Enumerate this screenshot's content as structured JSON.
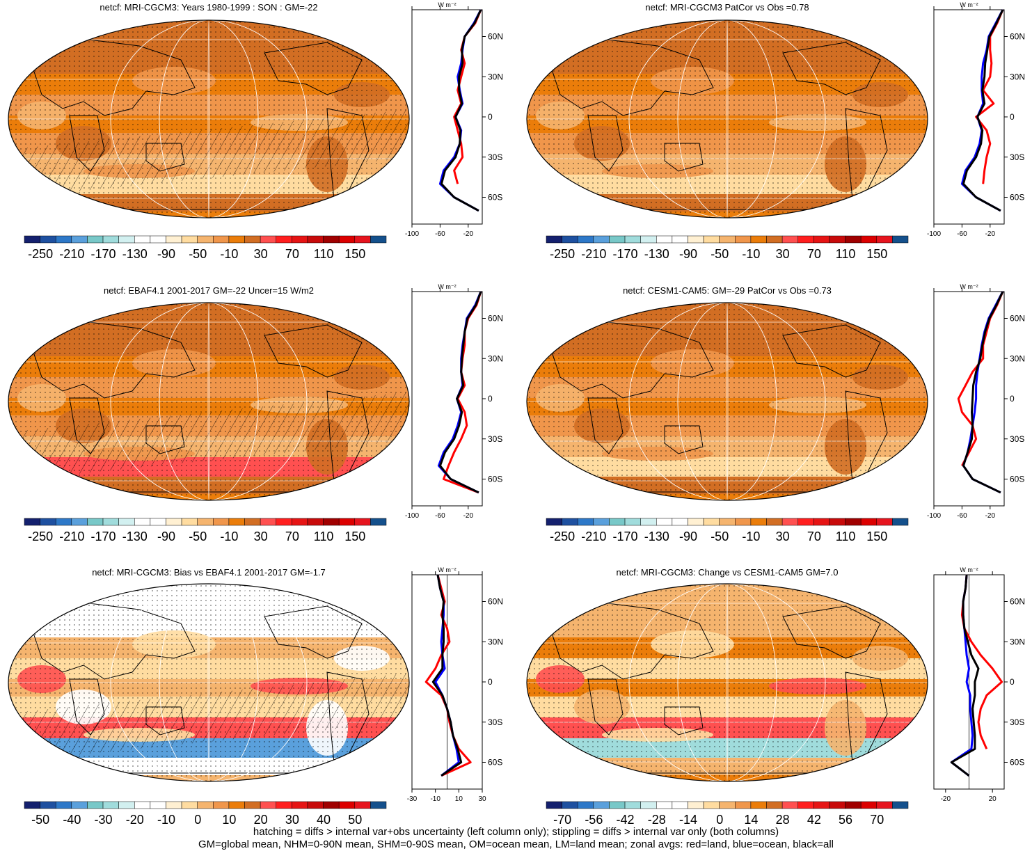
{
  "panels": [
    {
      "id": "p1",
      "title": "netcf: MRI-CGCM3: Years 1980-1999 : SON : GM=-22",
      "colorbar_labels": [
        "-250",
        "-210",
        "-170",
        "-130",
        "-90",
        "-50",
        "-10",
        "30",
        "70",
        "110",
        "150"
      ],
      "zonal_xticks": [
        "-100",
        "-60",
        "-20"
      ],
      "zonal_units": "W m⁻²",
      "lat_labels": [
        "60N",
        "30N",
        "0",
        "30S",
        "60S"
      ],
      "hatched": true,
      "stippled": true
    },
    {
      "id": "p2",
      "title": "netcf: MRI-CGCM3 PatCor vs Obs =0.78",
      "colorbar_labels": [
        "-250",
        "-210",
        "-170",
        "-130",
        "-90",
        "-50",
        "-10",
        "30",
        "70",
        "110",
        "150"
      ],
      "zonal_xticks": [
        "-100",
        "-60",
        "-20"
      ],
      "zonal_units": "W m⁻²",
      "lat_labels": [
        "60N",
        "30N",
        "0",
        "30S",
        "60S"
      ],
      "hatched": false,
      "stippled": true
    },
    {
      "id": "p3",
      "title": "netcf: EBAF4.1 2001-2017 GM=-22 Uncer=15 W/m2",
      "colorbar_labels": [
        "-250",
        "-210",
        "-170",
        "-130",
        "-90",
        "-50",
        "-10",
        "30",
        "70",
        "110",
        "150"
      ],
      "zonal_xticks": [
        "-100",
        "-60",
        "-20"
      ],
      "zonal_units": "W m⁻²",
      "lat_labels": [
        "60N",
        "30N",
        "0",
        "30S",
        "60S"
      ],
      "hatched": true,
      "stippled": true
    },
    {
      "id": "p4",
      "title": "netcf: CESM1-CAM5: GM=-29 PatCor vs Obs =0.73",
      "colorbar_labels": [
        "-250",
        "-210",
        "-170",
        "-130",
        "-90",
        "-50",
        "-10",
        "30",
        "70",
        "110",
        "150"
      ],
      "zonal_xticks": [
        "-100",
        "-60",
        "-20"
      ],
      "zonal_units": "W m⁻²",
      "lat_labels": [
        "60N",
        "30N",
        "0",
        "30S",
        "60S"
      ],
      "hatched": false,
      "stippled": true
    },
    {
      "id": "p5",
      "title": "netcf: MRI-CGCM3: Bias vs EBAF4.1 2001-2017  GM=-1.7",
      "colorbar_labels": [
        "-50",
        "-40",
        "-30",
        "-20",
        "-10",
        "0",
        "10",
        "20",
        "30",
        "40",
        "50"
      ],
      "zonal_xticks": [
        "-30",
        "-10",
        "10",
        "30"
      ],
      "zonal_units": "W m⁻²",
      "lat_labels": [
        "60N",
        "30N",
        "0",
        "30S",
        "60S"
      ],
      "hatched": true,
      "stippled": true
    },
    {
      "id": "p6",
      "title": "netcf: MRI-CGCM3: Change vs CESM1-CAM5 GM=7.0",
      "colorbar_labels": [
        "-70",
        "-56",
        "-42",
        "-28",
        "-14",
        "0",
        "14",
        "28",
        "42",
        "56",
        "70"
      ],
      "zonal_xticks": [
        "-20",
        "20"
      ],
      "zonal_units": "W m⁻²",
      "lat_labels": [
        "60N",
        "30N",
        "0",
        "30S",
        "60S"
      ],
      "hatched": false,
      "stippled": true
    }
  ],
  "colorbar_colors": [
    "#14206e",
    "#1e50a0",
    "#2d78c8",
    "#5aa0dc",
    "#78c8c8",
    "#a0dcdc",
    "#d2f0f0",
    "#ffffff",
    "#ffffff",
    "#fff0d2",
    "#ffdca0",
    "#f5b46e",
    "#f0964b",
    "#eb7d0a",
    "#d26e23",
    "#ff5050",
    "#ff1e1e",
    "#e61414",
    "#c80a0a",
    "#a00000",
    "#dc0000",
    "#e6141e",
    "#14508c"
  ],
  "footer": {
    "line1": "hatching = diffs > internal var+obs uncertainty (left column only); stippling = diffs > internal var only (both columns)",
    "line2": "GM=global mean, NHM=0-90N mean, SHM=0-90S mean, OM=ocean mean, LM=land mean; zonal avgs: red=land, blue=ocean, black=all"
  },
  "chart_data": [
    {
      "type": "heatmap",
      "title": "netcf: MRI-CGCM3: Years 1980-1999 : SON : GM=-22",
      "colorbar": [
        -250,
        -210,
        -170,
        -130,
        -90,
        -50,
        -10,
        30,
        70,
        110,
        150
      ],
      "zonal": {
        "type": "line",
        "xlim": [
          -100,
          0
        ],
        "latitudes": [
          80,
          70,
          60,
          50,
          40,
          30,
          20,
          10,
          0,
          -10,
          -20,
          -30,
          -40,
          -50,
          -60,
          -70
        ],
        "series": [
          {
            "name": "land",
            "color": "red",
            "values": [
              -2,
              -10,
              -25,
              -30,
              -25,
              -30,
              -35,
              -30,
              -40,
              -35,
              -30,
              -28,
              -40,
              -35,
              null,
              -5
            ]
          },
          {
            "name": "ocean",
            "color": "blue",
            "values": [
              -2,
              -12,
              -25,
              -28,
              -30,
              -35,
              -32,
              -28,
              -38,
              -30,
              -32,
              -40,
              -55,
              -60,
              -40,
              -5
            ]
          },
          {
            "name": "all",
            "color": "black",
            "values": [
              -2,
              -11,
              -25,
              -29,
              -28,
              -33,
              -33,
              -29,
              -38,
              -31,
              -32,
              -38,
              -53,
              -58,
              -40,
              -5
            ]
          }
        ]
      }
    },
    {
      "type": "heatmap",
      "title": "netcf: MRI-CGCM3 PatCor vs Obs =0.78",
      "colorbar": [
        -250,
        -210,
        -170,
        -130,
        -90,
        -50,
        -10,
        30,
        70,
        110,
        150
      ],
      "zonal": {
        "type": "line",
        "xlim": [
          -100,
          0
        ],
        "latitudes": [
          80,
          70,
          60,
          50,
          40,
          30,
          20,
          10,
          0,
          -10,
          -20,
          -30,
          -40,
          -50,
          -60,
          -70
        ],
        "series": [
          {
            "name": "land",
            "color": "red",
            "values": [
              -2,
              -10,
              -20,
              -20,
              -18,
              -20,
              -30,
              -15,
              -40,
              -25,
              -20,
              -25,
              -28,
              -30,
              null,
              -5
            ]
          },
          {
            "name": "ocean",
            "color": "blue",
            "values": [
              -2,
              -12,
              -22,
              -25,
              -30,
              -32,
              -32,
              -30,
              -38,
              -32,
              -35,
              -42,
              -55,
              -60,
              -40,
              -5
            ]
          },
          {
            "name": "all",
            "color": "black",
            "values": [
              -2,
              -11,
              -21,
              -24,
              -27,
              -28,
              -31,
              -28,
              -38,
              -31,
              -33,
              -40,
              -53,
              -58,
              -40,
              -5
            ]
          }
        ]
      }
    },
    {
      "type": "heatmap",
      "title": "netcf: EBAF4.1 2001-2017 GM=-22 Uncer=15 W/m2",
      "colorbar": [
        -250,
        -210,
        -170,
        -130,
        -90,
        -50,
        -10,
        30,
        70,
        110,
        150
      ],
      "zonal": {
        "type": "line",
        "xlim": [
          -100,
          0
        ],
        "latitudes": [
          80,
          70,
          60,
          50,
          40,
          30,
          20,
          10,
          0,
          -10,
          -20,
          -30,
          -40,
          -50,
          -60,
          -70
        ],
        "series": [
          {
            "name": "land",
            "color": "red",
            "values": [
              -2,
              -8,
              -20,
              -25,
              -25,
              -28,
              -30,
              -25,
              -35,
              -25,
              -22,
              -30,
              -40,
              -48,
              -55,
              -5
            ]
          },
          {
            "name": "ocean",
            "color": "blue",
            "values": [
              -2,
              -10,
              -22,
              -25,
              -28,
              -30,
              -30,
              -28,
              -36,
              -30,
              -35,
              -42,
              -55,
              -62,
              -45,
              -5
            ]
          },
          {
            "name": "all",
            "color": "black",
            "values": [
              -2,
              -9,
              -21,
              -25,
              -27,
              -29,
              -30,
              -27,
              -36,
              -29,
              -33,
              -40,
              -53,
              -60,
              -45,
              -5
            ]
          }
        ]
      }
    },
    {
      "type": "heatmap",
      "title": "netcf: CESM1-CAM5: GM=-29 PatCor vs Obs =0.73",
      "colorbar": [
        -250,
        -210,
        -170,
        -130,
        -90,
        -50,
        -10,
        30,
        70,
        110,
        150
      ],
      "zonal": {
        "type": "line",
        "xlim": [
          -100,
          0
        ],
        "latitudes": [
          80,
          70,
          60,
          50,
          40,
          30,
          20,
          10,
          0,
          -10,
          -20,
          -30,
          -40,
          -50,
          -60,
          -70
        ],
        "series": [
          {
            "name": "land",
            "color": "red",
            "values": [
              -2,
              -10,
              -20,
              -25,
              -30,
              -30,
              -45,
              -55,
              -65,
              -60,
              -45,
              -40,
              -50,
              -60,
              null,
              -5
            ]
          },
          {
            "name": "ocean",
            "color": "blue",
            "values": [
              -2,
              -12,
              -22,
              -28,
              -32,
              -35,
              -38,
              -40,
              -40,
              -42,
              -45,
              -48,
              -52,
              -58,
              -45,
              -5
            ]
          },
          {
            "name": "all",
            "color": "black",
            "values": [
              -2,
              -11,
              -21,
              -27,
              -31,
              -34,
              -40,
              -44,
              -45,
              -46,
              -45,
              -46,
              -52,
              -58,
              -45,
              -5
            ]
          }
        ]
      }
    },
    {
      "type": "heatmap",
      "title": "netcf: MRI-CGCM3: Bias vs EBAF4.1 2001-2017  GM=-1.7",
      "colorbar": [
        -50,
        -40,
        -30,
        -20,
        -10,
        0,
        10,
        20,
        30,
        40,
        50
      ],
      "zonal": {
        "type": "line",
        "xlim": [
          -30,
          30
        ],
        "latitudes": [
          80,
          70,
          60,
          50,
          40,
          30,
          20,
          10,
          0,
          -10,
          -20,
          -30,
          -40,
          -50,
          -60,
          -70
        ],
        "series": [
          {
            "name": "land",
            "color": "red",
            "values": [
              -8,
              -5,
              -2,
              -5,
              0,
              2,
              -5,
              -10,
              -18,
              -5,
              0,
              2,
              5,
              10,
              20,
              -5
            ]
          },
          {
            "name": "ocean",
            "color": "blue",
            "values": [
              -8,
              -6,
              -3,
              -3,
              -4,
              -5,
              -4,
              -2,
              -10,
              -4,
              0,
              3,
              5,
              8,
              10,
              -5
            ]
          },
          {
            "name": "all",
            "color": "black",
            "values": [
              -8,
              -6,
              -3,
              -4,
              -3,
              -3,
              -4,
              -4,
              -12,
              -4,
              0,
              3,
              5,
              9,
              12,
              -5
            ]
          }
        ]
      }
    },
    {
      "type": "heatmap",
      "title": "netcf: MRI-CGCM3: Change vs CESM1-CAM5 GM=7.0",
      "colorbar": [
        -70,
        -56,
        -42,
        -28,
        -14,
        0,
        14,
        28,
        42,
        56,
        70
      ],
      "zonal": {
        "type": "line",
        "xlim": [
          -30,
          30
        ],
        "latitudes": [
          80,
          70,
          60,
          50,
          40,
          30,
          20,
          10,
          0,
          -10,
          -20,
          -30,
          -40,
          -50,
          -60,
          -70
        ],
        "series": [
          {
            "name": "land",
            "color": "red",
            "values": [
              -2,
              -3,
              -5,
              -6,
              -4,
              2,
              10,
              20,
              28,
              15,
              10,
              8,
              10,
              15,
              null,
              0
            ]
          },
          {
            "name": "ocean",
            "color": "blue",
            "values": [
              -2,
              -3,
              -5,
              -5,
              -4,
              -3,
              -2,
              0,
              -2,
              1,
              1,
              2,
              3,
              2,
              -15,
              0
            ]
          },
          {
            "name": "all",
            "color": "black",
            "values": [
              -2,
              -3,
              -5,
              -5,
              -4,
              -1,
              2,
              8,
              5,
              5,
              3,
              4,
              5,
              5,
              -15,
              0
            ]
          }
        ]
      }
    }
  ]
}
